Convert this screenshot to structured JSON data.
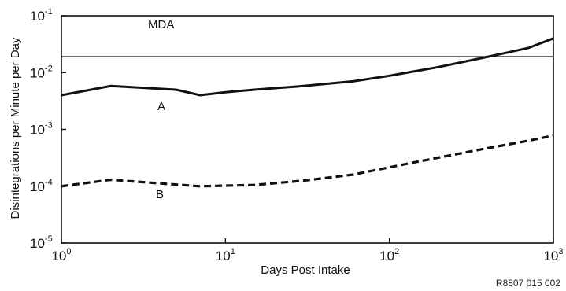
{
  "chart_data": {
    "type": "line",
    "title": "",
    "xlabel": "Days Post Intake",
    "ylabel": "Disintegrations per Minute per Day",
    "x_scale": "log",
    "y_scale": "log",
    "xlim": [
      1,
      1000
    ],
    "ylim": [
      1e-05,
      0.1
    ],
    "grid": false,
    "x_ticks": [
      {
        "value": 1,
        "base": "10",
        "exp": "0"
      },
      {
        "value": 10,
        "base": "10",
        "exp": "1"
      },
      {
        "value": 100,
        "base": "10",
        "exp": "2"
      },
      {
        "value": 1000,
        "base": "10",
        "exp": "3"
      }
    ],
    "y_ticks": [
      {
        "value": 0.1,
        "base": "10",
        "exp": "-1"
      },
      {
        "value": 0.01,
        "base": "10",
        "exp": "-2"
      },
      {
        "value": 0.001,
        "base": "10",
        "exp": "-3"
      },
      {
        "value": 0.0001,
        "base": "10",
        "exp": "-4"
      },
      {
        "value": 1e-05,
        "base": "10",
        "exp": "-5"
      }
    ],
    "series": [
      {
        "name": "A",
        "style": "solid",
        "x": [
          1,
          2,
          5,
          7,
          10,
          15,
          30,
          60,
          100,
          200,
          400,
          700,
          1000
        ],
        "y": [
          0.004,
          0.0058,
          0.005,
          0.004,
          0.0045,
          0.005,
          0.0058,
          0.007,
          0.0088,
          0.0125,
          0.019,
          0.027,
          0.04
        ]
      },
      {
        "name": "B",
        "style": "dashed",
        "x": [
          1,
          2,
          4,
          7,
          15,
          30,
          60,
          100,
          200,
          400,
          700,
          1000
        ],
        "y": [
          0.0001,
          0.00013,
          0.000112,
          0.0001,
          0.000105,
          0.000125,
          0.00016,
          0.000215,
          0.00032,
          0.00047,
          0.00063,
          0.00078
        ]
      }
    ],
    "reference_lines": [
      {
        "label": "MDA",
        "y": 0.019
      }
    ],
    "annotations": [
      {
        "text": "MDA"
      },
      {
        "text": "A"
      },
      {
        "text": "B"
      }
    ],
    "figure_code": "R8807 015 002"
  }
}
